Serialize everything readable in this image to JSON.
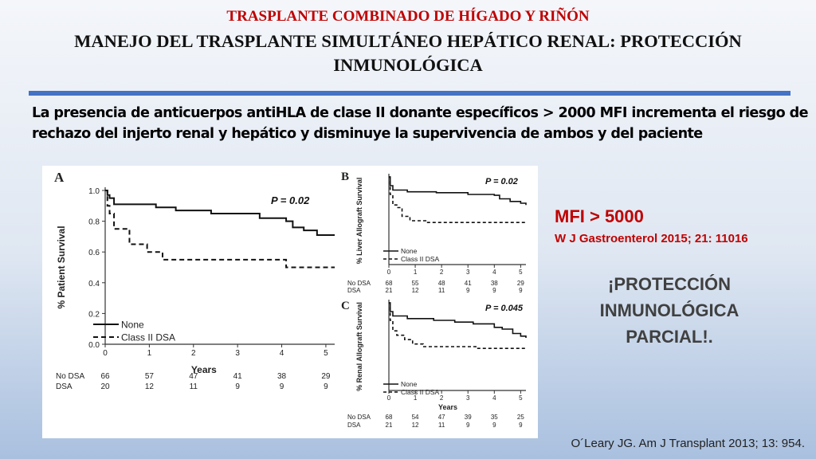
{
  "slide": {
    "topic": "TRASPLANTE COMBINADO DE HÍGADO Y RIÑÓN",
    "title": "MANEJO DEL TRASPLANTE SIMULTÁNEO HEPÁTICO RENAL: PROTECCIÓN INMUNOLÓGICA",
    "intro": "La presencia de anticuerpos antiHLA de clase II donante específicos > 2000 MFI incrementa el riesgo de rechazo del injerto renal y hepático y disminuye la supervivencia de ambos y del paciente",
    "mfi": "MFI > 5000",
    "mfi_ref": "W J Gastroenterol 2015; 21: 11016",
    "protection_lines": [
      "¡PROTECCIÓN",
      "INMUNOLÓGICA",
      "PARCIAL!."
    ],
    "citation": "O´Leary JG. Am J Transplant 2013; 13: 954.",
    "colors": {
      "accent_red": "#c00000",
      "rule_blue": "#4472c4",
      "dark_text": "#404040"
    }
  },
  "chart_data": [
    {
      "type": "line",
      "panel": "A",
      "p_value": "P = 0.02",
      "ylabel": "% Patient Survival",
      "xlabel": "Years",
      "x_ticks": [
        "0",
        "1",
        "2",
        "3",
        "4",
        "5"
      ],
      "y_ticks": [
        "0.0",
        "0.2",
        "0.4",
        "0.6",
        "0.8",
        "1.0"
      ],
      "xlim": [
        0,
        5.2
      ],
      "ylim": [
        0,
        1.0
      ],
      "series": [
        {
          "name": "None",
          "style": "solid",
          "points": [
            [
              0,
              1
            ],
            [
              0.05,
              0.97
            ],
            [
              0.1,
              0.95
            ],
            [
              0.2,
              0.91
            ],
            [
              1.0,
              0.91
            ],
            [
              1.15,
              0.89
            ],
            [
              1.6,
              0.87
            ],
            [
              2.3,
              0.87
            ],
            [
              2.4,
              0.85
            ],
            [
              3.0,
              0.85
            ],
            [
              3.5,
              0.82
            ],
            [
              4.0,
              0.82
            ],
            [
              4.1,
              0.8
            ],
            [
              4.25,
              0.76
            ],
            [
              4.5,
              0.74
            ],
            [
              4.8,
              0.71
            ],
            [
              5.2,
              0.71
            ]
          ]
        },
        {
          "name": "Class II DSA",
          "style": "dashed",
          "points": [
            [
              0,
              1
            ],
            [
              0.05,
              0.9
            ],
            [
              0.1,
              0.85
            ],
            [
              0.2,
              0.75
            ],
            [
              0.45,
              0.75
            ],
            [
              0.55,
              0.65
            ],
            [
              0.85,
              0.65
            ],
            [
              0.95,
              0.6
            ],
            [
              1.2,
              0.6
            ],
            [
              1.3,
              0.55
            ],
            [
              4.0,
              0.55
            ],
            [
              4.1,
              0.5
            ],
            [
              5.2,
              0.5
            ]
          ]
        }
      ],
      "risk_table": {
        "rows": [
          {
            "label": "No DSA",
            "values": [
              "66",
              "57",
              "47",
              "41",
              "38",
              "29"
            ]
          },
          {
            "label": "DSA",
            "values": [
              "20",
              "12",
              "11",
              "9",
              "9",
              "9"
            ]
          }
        ]
      }
    },
    {
      "type": "line",
      "panel": "B",
      "p_value": "P = 0.02",
      "ylabel": "% Liver Allograft Survival",
      "xlabel": "",
      "x_ticks": [
        "0",
        "1",
        "2",
        "3",
        "4",
        "5"
      ],
      "xlim": [
        0,
        5.2
      ],
      "ylim": [
        0,
        1.0
      ],
      "series": [
        {
          "name": "None",
          "style": "solid",
          "points": [
            [
              0,
              1
            ],
            [
              0.05,
              0.9
            ],
            [
              0.15,
              0.85
            ],
            [
              0.5,
              0.85
            ],
            [
              0.7,
              0.83
            ],
            [
              1.6,
              0.83
            ],
            [
              1.8,
              0.82
            ],
            [
              3.0,
              0.8
            ],
            [
              4.0,
              0.79
            ],
            [
              4.2,
              0.75
            ],
            [
              4.6,
              0.72
            ],
            [
              5.0,
              0.7
            ],
            [
              5.2,
              0.68
            ]
          ]
        },
        {
          "name": "Class II DSA",
          "style": "dashed",
          "points": [
            [
              0,
              1
            ],
            [
              0.05,
              0.8
            ],
            [
              0.15,
              0.68
            ],
            [
              0.3,
              0.65
            ],
            [
              0.5,
              0.55
            ],
            [
              0.8,
              0.5
            ],
            [
              1.2,
              0.5
            ],
            [
              1.4,
              0.48
            ],
            [
              5.2,
              0.48
            ]
          ]
        }
      ],
      "risk_table": {
        "rows": [
          {
            "label": "No DSA",
            "values": [
              "68",
              "55",
              "48",
              "41",
              "38",
              "29"
            ]
          },
          {
            "label": "DSA",
            "values": [
              "21",
              "12",
              "11",
              "9",
              "9",
              "9"
            ]
          }
        ]
      }
    },
    {
      "type": "line",
      "panel": "C",
      "p_value": "P = 0.045",
      "ylabel": "% Renal Allograft Survival",
      "xlabel": "Years",
      "x_ticks": [
        "0",
        "1",
        "2",
        "3",
        "4",
        "5"
      ],
      "xlim": [
        0,
        5.2
      ],
      "ylim": [
        0,
        1.0
      ],
      "series": [
        {
          "name": "None",
          "style": "solid",
          "points": [
            [
              0,
              1
            ],
            [
              0.05,
              0.9
            ],
            [
              0.15,
              0.85
            ],
            [
              0.5,
              0.85
            ],
            [
              0.7,
              0.82
            ],
            [
              1.7,
              0.8
            ],
            [
              2.5,
              0.78
            ],
            [
              3.2,
              0.76
            ],
            [
              4.0,
              0.72
            ],
            [
              4.3,
              0.7
            ],
            [
              4.7,
              0.65
            ],
            [
              5.0,
              0.62
            ],
            [
              5.2,
              0.6
            ]
          ]
        },
        {
          "name": "Class II DSA",
          "style": "dashed",
          "points": [
            [
              0,
              1
            ],
            [
              0.05,
              0.8
            ],
            [
              0.15,
              0.68
            ],
            [
              0.3,
              0.63
            ],
            [
              0.6,
              0.58
            ],
            [
              0.9,
              0.53
            ],
            [
              1.3,
              0.5
            ],
            [
              3.0,
              0.5
            ],
            [
              3.3,
              0.48
            ],
            [
              5.2,
              0.47
            ]
          ]
        }
      ],
      "risk_table": {
        "rows": [
          {
            "label": "No DSA",
            "values": [
              "68",
              "54",
              "47",
              "39",
              "35",
              "25"
            ]
          },
          {
            "label": "DSA",
            "values": [
              "21",
              "12",
              "11",
              "9",
              "9",
              "9"
            ]
          }
        ]
      }
    }
  ]
}
